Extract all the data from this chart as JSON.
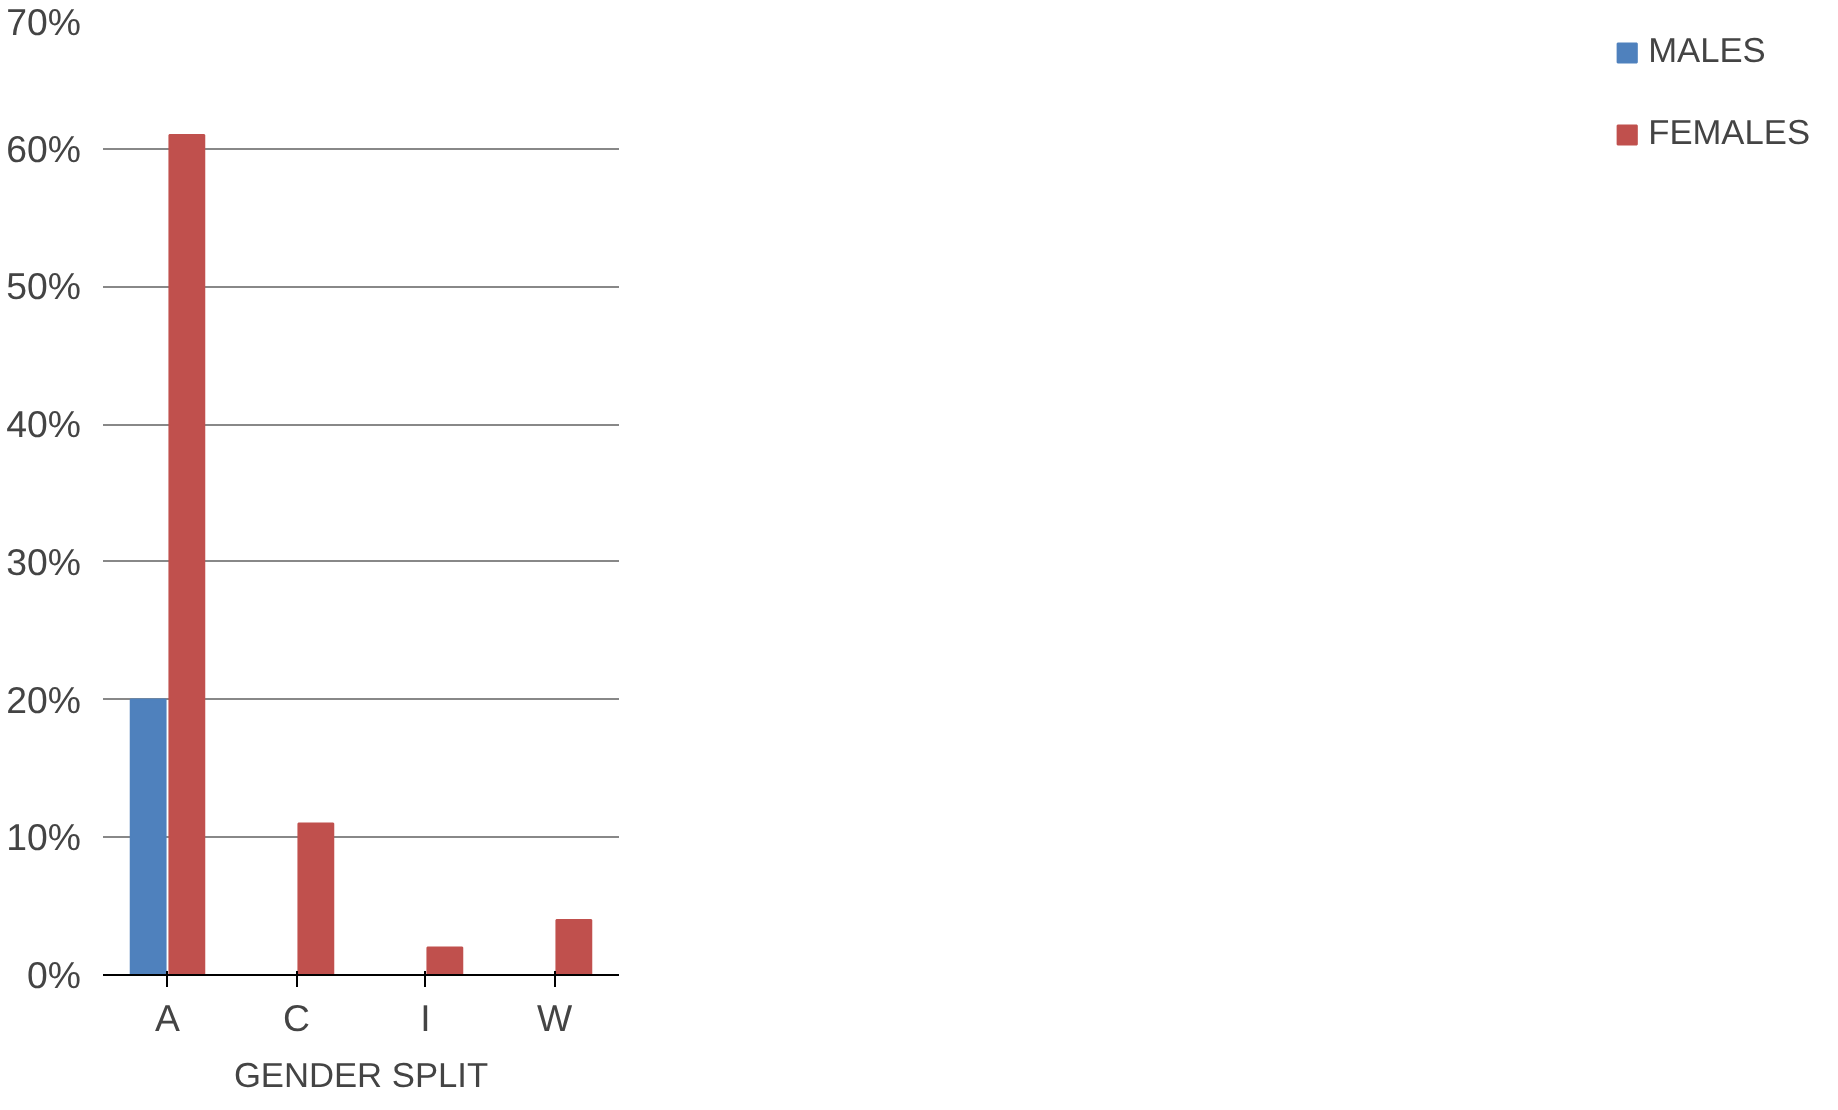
{
  "chart_data": {
    "type": "bar",
    "xlabel": "GENDER SPLIT",
    "categories": [
      "A",
      "C",
      "I",
      "W"
    ],
    "series": [
      {
        "name": "MALES",
        "color": "#4f81bd",
        "values": [
          20,
          0,
          0,
          0
        ]
      },
      {
        "name": "FEMALES",
        "color": "#c0504d",
        "values": [
          61,
          11,
          2,
          4
        ]
      }
    ],
    "ylim": [
      0,
      70
    ],
    "yticks": [
      {
        "value": 0,
        "label": "0%"
      },
      {
        "value": 10,
        "label": "10%"
      },
      {
        "value": 20,
        "label": "20%"
      },
      {
        "value": 30,
        "label": "30%"
      },
      {
        "value": 40,
        "label": "40%"
      },
      {
        "value": 50,
        "label": "50%"
      },
      {
        "value": 60,
        "label": "60%"
      },
      {
        "value": 70,
        "label": "70%"
      }
    ],
    "grid": "y",
    "legend": "right"
  }
}
